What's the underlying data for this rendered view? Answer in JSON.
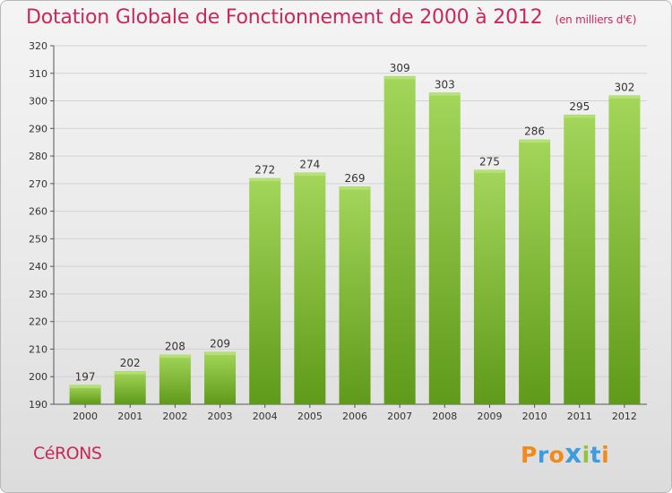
{
  "header": {
    "title": "Dotation Globale de Fonctionnement de 2000 à 2012",
    "unit": "(en milliers d'€)"
  },
  "footer": {
    "commune": "CéRONS",
    "logo_text": "Proxiti",
    "logo_letter_colors": [
      "#f08a1c",
      "#3d9be0",
      "#f08a1c",
      "#3d9be0",
      "#8cc63f",
      "#3d9be0",
      "#f08a1c"
    ]
  },
  "colors": {
    "title": "#c8285a",
    "bar_top": "#a3d65a",
    "bar_bottom": "#5f9a1a",
    "grid": "#d2d2d2",
    "axis": "#555555"
  },
  "chart_data": {
    "type": "bar",
    "categories": [
      "2000",
      "2001",
      "2002",
      "2003",
      "2004",
      "2005",
      "2006",
      "2007",
      "2008",
      "2009",
      "2010",
      "2011",
      "2012"
    ],
    "values": [
      197,
      202,
      208,
      209,
      272,
      274,
      269,
      309,
      303,
      275,
      286,
      295,
      302
    ],
    "ylim": [
      190,
      320
    ],
    "yticks": [
      190,
      200,
      210,
      220,
      230,
      240,
      250,
      260,
      270,
      280,
      290,
      300,
      310,
      320
    ],
    "grid": "horizontal",
    "data_labels": true
  }
}
